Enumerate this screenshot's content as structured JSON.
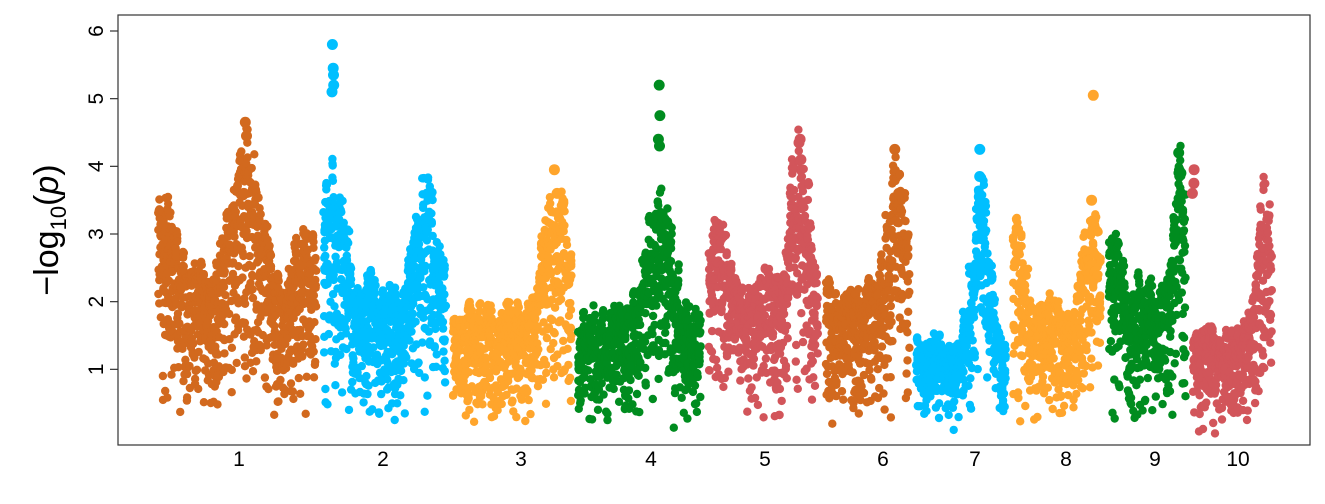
{
  "chart_data": {
    "type": "scatter",
    "title": "",
    "xlabel": "",
    "ylabel_prefix": "−log",
    "ylabel_sub": "10",
    "ylabel_paren_open": "(",
    "ylabel_var": "p",
    "ylabel_paren_close": ")",
    "ylim": [
      0,
      6
    ],
    "yticks": [
      {
        "value": 1,
        "label": "1"
      },
      {
        "value": 2,
        "label": "2"
      },
      {
        "value": 3,
        "label": "3"
      },
      {
        "value": 4,
        "label": "4"
      },
      {
        "value": 5,
        "label": "5"
      },
      {
        "value": 6,
        "label": "6"
      }
    ],
    "grid": false,
    "point_style": "filled circles, dense",
    "chromosomes": [
      {
        "label": "1",
        "color": "#D2691E",
        "bg_max": 2.3,
        "peaks": [
          {
            "at": 0.05,
            "h": 3.7
          },
          {
            "at": 0.22,
            "h": 2.7
          },
          {
            "at": 0.55,
            "h": 4.6
          },
          {
            "at": 0.92,
            "h": 3.1
          }
        ],
        "top_hits": [
          4.65,
          4.45,
          3.6
        ]
      },
      {
        "label": "2",
        "color": "#00BFFF",
        "bg_max": 2.1,
        "peaks": [
          {
            "at": 0.1,
            "h": 4.2
          },
          {
            "at": 0.42,
            "h": 2.5
          },
          {
            "at": 0.8,
            "h": 3.9
          }
        ],
        "top_hits": [
          5.8,
          5.45,
          5.35,
          5.2,
          5.1
        ]
      },
      {
        "label": "3",
        "color": "#FFA52C",
        "bg_max": 2.0,
        "peaks": [
          {
            "at": 0.05,
            "h": 2.9
          },
          {
            "at": 0.42,
            "h": 1.0
          },
          {
            "at": 0.85,
            "h": 4.0
          }
        ],
        "top_hits": [
          3.95,
          3.6
        ]
      },
      {
        "label": "4",
        "color": "#008C1F",
        "bg_max": 1.9,
        "peaks": [
          {
            "at": 0.05,
            "h": 3.2
          },
          {
            "at": 0.4,
            "h": 1.6
          },
          {
            "at": 0.65,
            "h": 3.9
          }
        ],
        "top_hits": [
          5.2,
          4.75,
          4.4,
          4.3
        ]
      },
      {
        "label": "5",
        "color": "#D2555A",
        "bg_max": 2.1,
        "peaks": [
          {
            "at": 0.1,
            "h": 3.3
          },
          {
            "at": 0.55,
            "h": 2.6
          },
          {
            "at": 0.8,
            "h": 4.4
          }
        ],
        "top_hits": [
          4.4,
          4.35,
          4.1
        ]
      },
      {
        "label": "6",
        "color": "#D2691E",
        "bg_max": 2.3,
        "peaks": [
          {
            "at": 0.1,
            "h": 3.4
          },
          {
            "at": 0.35,
            "h": 2.2
          },
          {
            "at": 0.82,
            "h": 4.3
          }
        ],
        "top_hits": [
          4.25,
          3.6
        ]
      },
      {
        "label": "7",
        "color": "#00BFFF",
        "bg_max": 1.5,
        "peaks": [
          {
            "at": 0.05,
            "h": 3.2
          },
          {
            "at": 0.35,
            "h": 0.6
          },
          {
            "at": 0.7,
            "h": 3.8
          }
        ],
        "top_hits": [
          4.25,
          3.85,
          3.55
        ]
      },
      {
        "label": "8",
        "color": "#FFA52C",
        "bg_max": 1.8,
        "peaks": [
          {
            "at": 0.05,
            "h": 3.5
          },
          {
            "at": 0.4,
            "h": 2.2
          },
          {
            "at": 0.85,
            "h": 3.6
          }
        ],
        "top_hits": [
          5.05,
          3.5
        ]
      },
      {
        "label": "9",
        "color": "#008C1F",
        "bg_max": 2.0,
        "peaks": [
          {
            "at": 0.1,
            "h": 3.1
          },
          {
            "at": 0.45,
            "h": 2.6
          },
          {
            "at": 0.88,
            "h": 4.2
          }
        ],
        "top_hits": [
          4.2,
          3.9,
          3.6
        ]
      },
      {
        "label": "10",
        "color": "#D2555A",
        "bg_max": 1.6,
        "peaks": [
          {
            "at": 0.05,
            "h": 3.9
          },
          {
            "at": 0.35,
            "h": 1.3
          },
          {
            "at": 0.85,
            "h": 3.8
          }
        ],
        "top_hits": [
          3.95,
          3.75,
          3.6
        ]
      }
    ]
  }
}
